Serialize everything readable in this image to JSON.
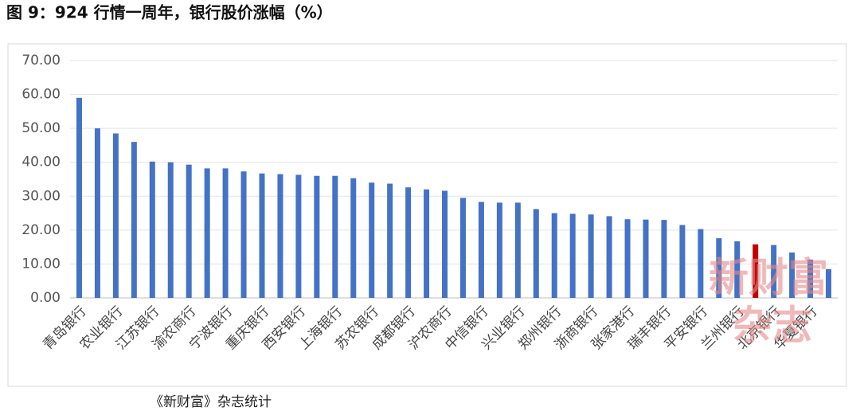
{
  "chart_data": {
    "type": "bar",
    "title": "图 9：924 行情一周年，银行股价涨幅（%）",
    "source": "《新财富》杂志统计",
    "watermark": [
      "新财富",
      "杂志"
    ],
    "categories": [
      "青岛银行",
      null,
      "农业银行",
      null,
      "江苏银行",
      null,
      "渝农商行",
      null,
      "宁波银行",
      null,
      "重庆银行",
      null,
      "西安银行",
      null,
      "上海银行",
      null,
      "苏农银行",
      null,
      "成都银行",
      null,
      "沪农商行",
      null,
      "中信银行",
      null,
      "兴业银行",
      null,
      "郑州银行",
      null,
      "浙商银行",
      null,
      "张家港行",
      null,
      "瑞丰银行",
      null,
      "平安银行",
      null,
      "兰州银行",
      null,
      "北京银行",
      null,
      "华夏银行",
      null
    ],
    "values": [
      59,
      50,
      48.5,
      46,
      40.2,
      40,
      39.3,
      38.2,
      38.2,
      37.3,
      36.7,
      36.5,
      36.3,
      36,
      36,
      35.3,
      34,
      33.7,
      32.6,
      32,
      31.6,
      29.5,
      28.3,
      28.1,
      28.1,
      26.2,
      25,
      24.8,
      24.6,
      24.1,
      23.2,
      23.1,
      23,
      21.5,
      20.3,
      17.6,
      16.7,
      15.8,
      15.6,
      13.4,
      11.3,
      8.5
    ],
    "colors": [
      "#4472c4",
      "#4472c4",
      "#4472c4",
      "#4472c4",
      "#4472c4",
      "#4472c4",
      "#4472c4",
      "#4472c4",
      "#4472c4",
      "#4472c4",
      "#4472c4",
      "#4472c4",
      "#4472c4",
      "#4472c4",
      "#4472c4",
      "#4472c4",
      "#4472c4",
      "#4472c4",
      "#4472c4",
      "#4472c4",
      "#4472c4",
      "#4472c4",
      "#4472c4",
      "#4472c4",
      "#4472c4",
      "#4472c4",
      "#4472c4",
      "#4472c4",
      "#4472c4",
      "#4472c4",
      "#4472c4",
      "#4472c4",
      "#4472c4",
      "#4472c4",
      "#4472c4",
      "#4472c4",
      "#4472c4",
      "#c00000",
      "#4472c4",
      "#4472c4",
      "#4472c4",
      "#4472c4"
    ],
    "ylim": [
      0,
      70
    ],
    "yticks": [
      {
        "value": 0,
        "label": "0.00"
      },
      {
        "value": 10,
        "label": "10.00"
      },
      {
        "value": 20,
        "label": "20.00"
      },
      {
        "value": 30,
        "label": "30.00"
      },
      {
        "value": 40,
        "label": "40.00"
      },
      {
        "value": 50,
        "label": "50.00"
      },
      {
        "value": 60,
        "label": "60.00"
      },
      {
        "value": 70,
        "label": "70.00"
      }
    ],
    "grid": true
  }
}
